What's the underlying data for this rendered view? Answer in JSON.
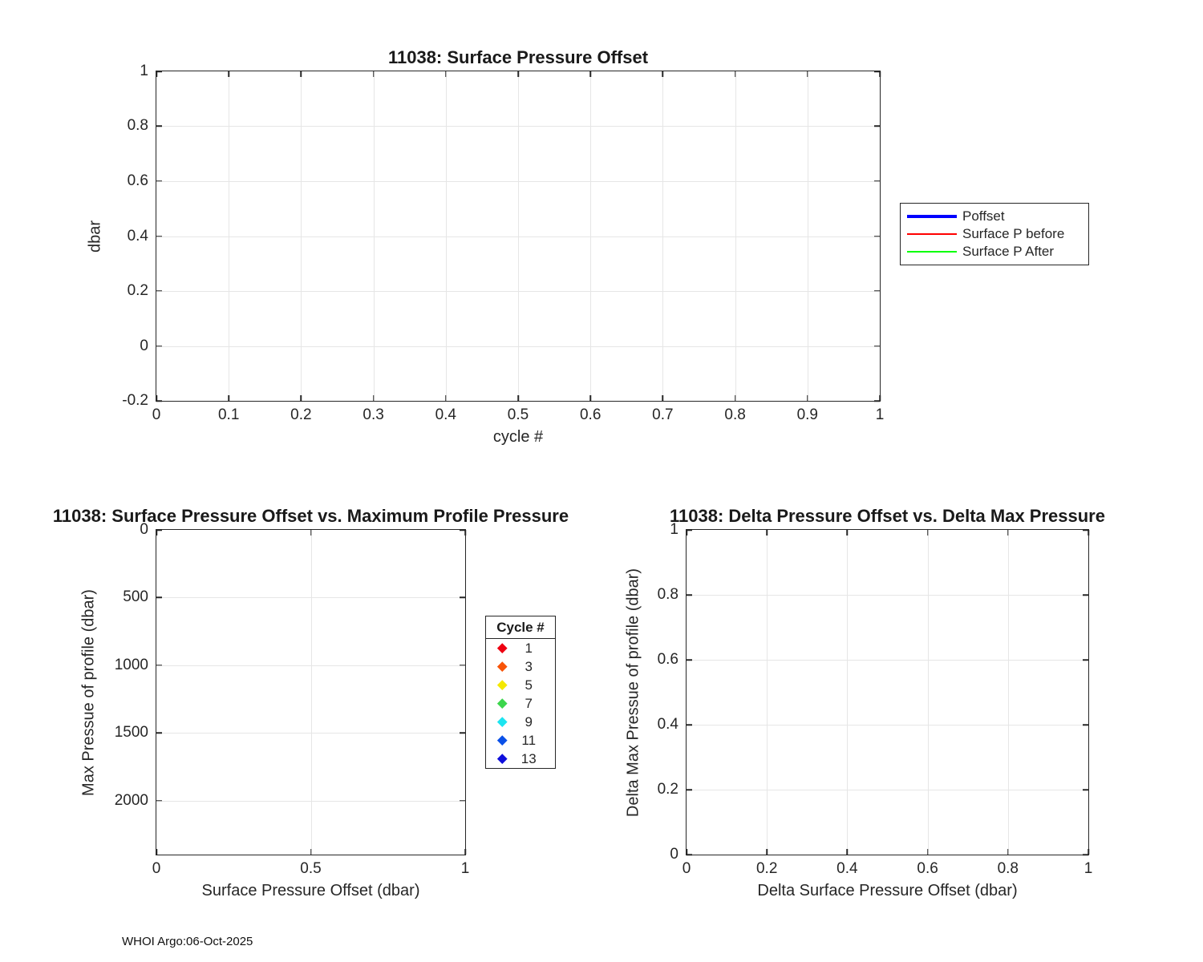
{
  "figure": {
    "footer": "WHOI Argo:06-Oct-2025",
    "background_color": "#ffffff",
    "axis_color": "#262626",
    "grid_color": "#e6e6e6"
  },
  "chart_data": [
    {
      "type": "line",
      "title": "11038: Surface Pressure Offset",
      "xlabel": "cycle #",
      "ylabel": "dbar",
      "xlim": [
        0,
        1
      ],
      "ylim_top_to_bottom": [
        1,
        -0.2
      ],
      "xticks": [
        "0",
        "0.1",
        "0.2",
        "0.3",
        "0.4",
        "0.5",
        "0.6",
        "0.7",
        "0.8",
        "0.9",
        "1"
      ],
      "yticks": [
        "1",
        "0.8",
        "0.6",
        "0.4",
        "0.2",
        "0",
        "-0.2"
      ],
      "grid": true,
      "series": [],
      "legend": {
        "position": "right-outside",
        "items": [
          {
            "label": "Poffset",
            "color": "#0000ff",
            "line_width": 4
          },
          {
            "label": "Surface P before",
            "color": "#ff0000",
            "line_width": 1.5
          },
          {
            "label": "Surface P After",
            "color": "#00ff00",
            "line_width": 1.5
          }
        ]
      }
    },
    {
      "type": "scatter",
      "title": "11038: Surface Pressure Offset vs. Maximum Profile Pressure",
      "xlabel": "Surface Pressure Offset (dbar)",
      "ylabel": "Max Pressue of profile (dbar)",
      "xlim": [
        0,
        1
      ],
      "ylim_top_to_bottom": [
        0,
        2400
      ],
      "xticks": [
        "0",
        "0.5",
        "1"
      ],
      "yticks": [
        "0",
        "500",
        "1000",
        "1500",
        "2000"
      ],
      "grid": true,
      "y_axis_reversed": true,
      "series": [],
      "legend": {
        "title": "Cycle #",
        "marker": "diamond",
        "items": [
          {
            "label": "1",
            "color": "#ee0011"
          },
          {
            "label": "3",
            "color": "#f85408"
          },
          {
            "label": "5",
            "color": "#f4e800"
          },
          {
            "label": "7",
            "color": "#3cd64d"
          },
          {
            "label": "9",
            "color": "#1ce4f0"
          },
          {
            "label": "11",
            "color": "#0a50e8"
          },
          {
            "label": "13",
            "color": "#0f0fdc"
          }
        ]
      }
    },
    {
      "type": "scatter",
      "title": "11038: Delta Pressure Offset vs. Delta Max Pressure",
      "xlabel": "Delta Surface Pressure Offset (dbar)",
      "ylabel": "Delta Max Pressue of profile (dbar)",
      "xlim": [
        0,
        1
      ],
      "ylim_top_to_bottom": [
        1,
        0
      ],
      "xticks": [
        "0",
        "0.2",
        "0.4",
        "0.6",
        "0.8",
        "1"
      ],
      "yticks": [
        "1",
        "0.8",
        "0.6",
        "0.4",
        "0.2",
        "0"
      ],
      "grid": true,
      "series": []
    }
  ]
}
